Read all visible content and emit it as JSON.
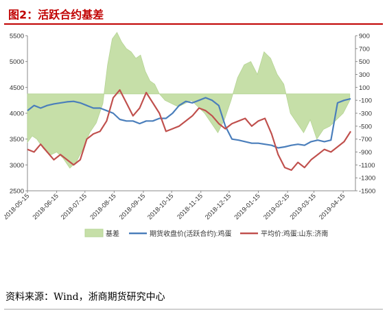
{
  "header": {
    "title": "图2：活跃合约基差"
  },
  "footer": {
    "source": "资料来源：Wind，浙商期货研究中心"
  },
  "chart_data": {
    "type": "line",
    "x_ticks": [
      "2018-05-15",
      "2018-06-15",
      "2018-07-15",
      "2018-08-15",
      "2018-09-15",
      "2018-10-15",
      "2018-11-15",
      "2018-12-15",
      "2019-01-15",
      "2019-02-15",
      "2019-03-15",
      "2019-04-15"
    ],
    "ylim_left": [
      2500,
      5500
    ],
    "yticks_left": [
      2500,
      3000,
      3500,
      4000,
      4500,
      5000,
      5500
    ],
    "ylim_right": [
      -1500,
      900
    ],
    "yticks_right": [
      -1500,
      -1300,
      -1100,
      -900,
      -700,
      -500,
      -300,
      -100,
      100,
      300,
      500,
      700,
      900
    ],
    "legend_position": "bottom",
    "colors": {
      "basis": "#c6dfa8",
      "basis_stroke": "#b5d494",
      "futures": "#4a7ebb",
      "spot": "#c0504d"
    },
    "series": [
      {
        "name": "基差",
        "axis": "right",
        "kind": "area",
        "x": [
          "2018-05-15",
          "2018-05-20",
          "2018-05-25",
          "2018-06-01",
          "2018-06-08",
          "2018-06-15",
          "2018-06-22",
          "2018-06-29",
          "2018-07-06",
          "2018-07-13",
          "2018-07-20",
          "2018-07-27",
          "2018-08-03",
          "2018-08-08",
          "2018-08-13",
          "2018-08-18",
          "2018-08-23",
          "2018-08-28",
          "2018-09-02",
          "2018-09-07",
          "2018-09-12",
          "2018-09-17",
          "2018-09-22",
          "2018-09-27",
          "2018-10-02",
          "2018-10-08",
          "2018-10-15",
          "2018-10-22",
          "2018-10-29",
          "2018-11-05",
          "2018-11-12",
          "2018-11-19",
          "2018-11-26",
          "2018-12-03",
          "2018-12-10",
          "2018-12-17",
          "2018-12-24",
          "2018-12-31",
          "2019-01-07",
          "2019-01-14",
          "2019-01-21",
          "2019-01-28",
          "2019-02-04",
          "2019-02-11",
          "2019-02-18",
          "2019-02-25",
          "2019-03-04",
          "2019-03-11",
          "2019-03-18",
          "2019-03-25",
          "2019-04-01",
          "2019-04-08",
          "2019-04-15",
          "2019-04-22"
        ],
        "values": [
          -750,
          -650,
          -700,
          -850,
          -950,
          -900,
          -1000,
          -1150,
          -1050,
          -850,
          -600,
          -450,
          -150,
          450,
          850,
          950,
          800,
          700,
          650,
          550,
          600,
          350,
          200,
          150,
          0,
          -100,
          -150,
          -200,
          -150,
          -100,
          -200,
          -300,
          -450,
          -600,
          -400,
          -100,
          250,
          450,
          500,
          300,
          650,
          550,
          300,
          150,
          -300,
          -450,
          -600,
          -400,
          -700,
          -550,
          -500,
          -400,
          -300,
          -100
        ]
      },
      {
        "name": "期货收盘价(活跃合约):鸡蛋",
        "axis": "left",
        "kind": "line",
        "x": [
          "2018-05-15",
          "2018-05-22",
          "2018-05-29",
          "2018-06-05",
          "2018-06-12",
          "2018-06-19",
          "2018-06-26",
          "2018-07-03",
          "2018-07-10",
          "2018-07-17",
          "2018-07-24",
          "2018-07-31",
          "2018-08-07",
          "2018-08-14",
          "2018-08-21",
          "2018-08-28",
          "2018-09-04",
          "2018-09-11",
          "2018-09-18",
          "2018-09-25",
          "2018-10-02",
          "2018-10-09",
          "2018-10-16",
          "2018-10-23",
          "2018-10-30",
          "2018-11-06",
          "2018-11-13",
          "2018-11-20",
          "2018-11-27",
          "2018-12-04",
          "2018-12-11",
          "2018-12-18",
          "2018-12-25",
          "2019-01-01",
          "2019-01-08",
          "2019-01-15",
          "2019-01-22",
          "2019-01-29",
          "2019-02-05",
          "2019-02-12",
          "2019-02-19",
          "2019-02-26",
          "2019-03-05",
          "2019-03-12",
          "2019-03-19",
          "2019-03-26",
          "2019-04-02",
          "2019-04-09",
          "2019-04-16",
          "2019-04-23"
        ],
        "values": [
          4050,
          4150,
          4100,
          4150,
          4180,
          4200,
          4220,
          4230,
          4200,
          4150,
          4100,
          4100,
          4050,
          4000,
          3880,
          3850,
          3850,
          3800,
          3850,
          3850,
          3900,
          3900,
          4000,
          4150,
          4230,
          4200,
          4250,
          4300,
          4250,
          4150,
          3750,
          3500,
          3480,
          3450,
          3420,
          3420,
          3400,
          3380,
          3330,
          3350,
          3380,
          3400,
          3380,
          3450,
          3480,
          3450,
          3480,
          4200,
          4250,
          4280
        ]
      },
      {
        "name": "平均价:鸡蛋:山东:济南",
        "axis": "left",
        "kind": "line",
        "x": [
          "2018-05-15",
          "2018-05-22",
          "2018-05-29",
          "2018-06-05",
          "2018-06-12",
          "2018-06-19",
          "2018-06-26",
          "2018-07-03",
          "2018-07-10",
          "2018-07-17",
          "2018-07-24",
          "2018-07-31",
          "2018-08-07",
          "2018-08-14",
          "2018-08-21",
          "2018-08-28",
          "2018-09-04",
          "2018-09-11",
          "2018-09-18",
          "2018-09-25",
          "2018-10-02",
          "2018-10-09",
          "2018-10-16",
          "2018-10-23",
          "2018-10-30",
          "2018-11-06",
          "2018-11-13",
          "2018-11-20",
          "2018-11-27",
          "2018-12-04",
          "2018-12-11",
          "2018-12-18",
          "2018-12-25",
          "2019-01-01",
          "2019-01-08",
          "2019-01-15",
          "2019-01-22",
          "2019-01-29",
          "2019-02-05",
          "2019-02-12",
          "2019-02-19",
          "2019-02-26",
          "2019-03-05",
          "2019-03-12",
          "2019-03-19",
          "2019-03-26",
          "2019-04-02",
          "2019-04-09",
          "2019-04-16",
          "2019-04-23"
        ],
        "values": [
          3300,
          3250,
          3400,
          3250,
          3100,
          3200,
          3100,
          3000,
          3100,
          3500,
          3600,
          3650,
          3850,
          4300,
          4450,
          4200,
          3950,
          4100,
          4400,
          4200,
          4000,
          3650,
          3700,
          3750,
          3850,
          3950,
          4100,
          4050,
          3950,
          3800,
          3700,
          3800,
          3850,
          3900,
          3750,
          3850,
          3900,
          3600,
          3200,
          2950,
          2900,
          3050,
          2950,
          3100,
          3200,
          3300,
          3250,
          3350,
          3450,
          3650
        ]
      }
    ]
  }
}
